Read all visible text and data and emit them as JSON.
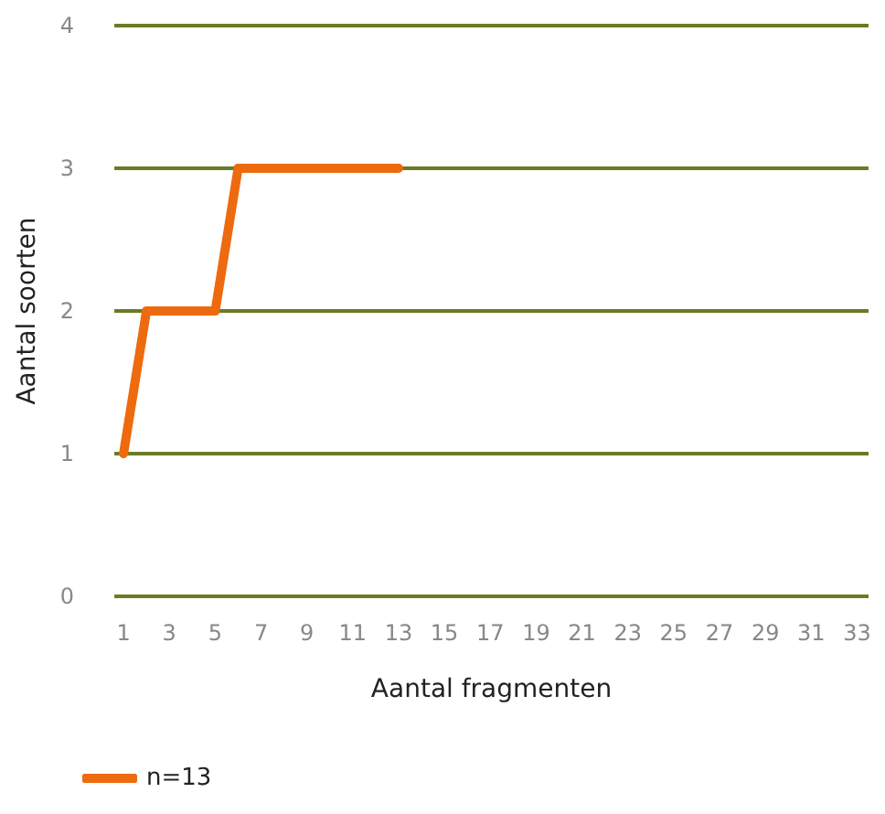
{
  "chart_data": {
    "type": "line",
    "xlabel": "Aantal fragmenten",
    "ylabel": "Aantal soorten",
    "x": [
      1,
      2,
      3,
      4,
      5,
      6,
      7,
      8,
      9,
      10,
      11,
      12,
      13
    ],
    "series": [
      {
        "name": "n=13",
        "color": "#ee6a0f",
        "values": [
          1,
          2,
          2,
          2,
          2,
          3,
          3,
          3,
          3,
          3,
          3,
          3,
          3
        ]
      }
    ],
    "xlim": [
      0.6,
      33.5
    ],
    "xticks": [
      1,
      3,
      5,
      7,
      9,
      11,
      13,
      15,
      17,
      19,
      21,
      23,
      25,
      27,
      29,
      31,
      33
    ],
    "ylim": [
      0,
      4
    ],
    "yticks": [
      0,
      1,
      2,
      3,
      4
    ],
    "grid": "y",
    "legend": "bottom left",
    "marker": "none",
    "line_style": "solid"
  }
}
